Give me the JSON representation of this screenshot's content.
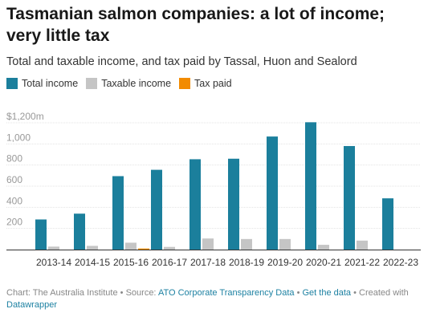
{
  "title": "Tasmanian salmon companies: a lot of income; very little tax",
  "subtitle": "Total and taxable income, and tax paid by Tassal, Huon and Sealord",
  "colors": {
    "total": "#1b7f9c",
    "taxable": "#c5c5c5",
    "tax": "#f28b00"
  },
  "chart_data": {
    "type": "bar",
    "title": "Tasmanian salmon companies: a lot of income; very little tax",
    "subtitle": "Total and taxable income, and tax paid by Tassal, Huon and Sealord",
    "categories": [
      "2013-14",
      "2014-15",
      "2015-16",
      "2016-17",
      "2017-18",
      "2018-19",
      "2019-20",
      "2020-21",
      "2021-22",
      "2022-23"
    ],
    "series": [
      {
        "name": "Total income",
        "values": [
          285,
          340,
          695,
          755,
          855,
          860,
          1070,
          1205,
          980,
          485
        ]
      },
      {
        "name": "Taxable income",
        "values": [
          28,
          35,
          65,
          25,
          105,
          100,
          100,
          45,
          85,
          0
        ]
      },
      {
        "name": "Tax paid",
        "values": [
          0,
          0,
          10,
          0,
          0,
          0,
          0,
          0,
          0,
          0
        ]
      }
    ],
    "yticks": [
      {
        "value": 200,
        "label": "200"
      },
      {
        "value": 400,
        "label": "400"
      },
      {
        "value": 600,
        "label": "600"
      },
      {
        "value": 800,
        "label": "800"
      },
      {
        "value": 1000,
        "label": "1,000"
      },
      {
        "value": 1200,
        "label": "$1,200m"
      }
    ],
    "ylim": [
      0,
      1200
    ],
    "grid": true,
    "legend_position": "top-left"
  },
  "footer": {
    "chart_by": "Chart: The Australia Institute",
    "source_label": "Source:",
    "source_link": "ATO Corporate Transparency Data",
    "get_data": "Get the data",
    "created_with": "Created with",
    "tool": "Datawrapper"
  }
}
